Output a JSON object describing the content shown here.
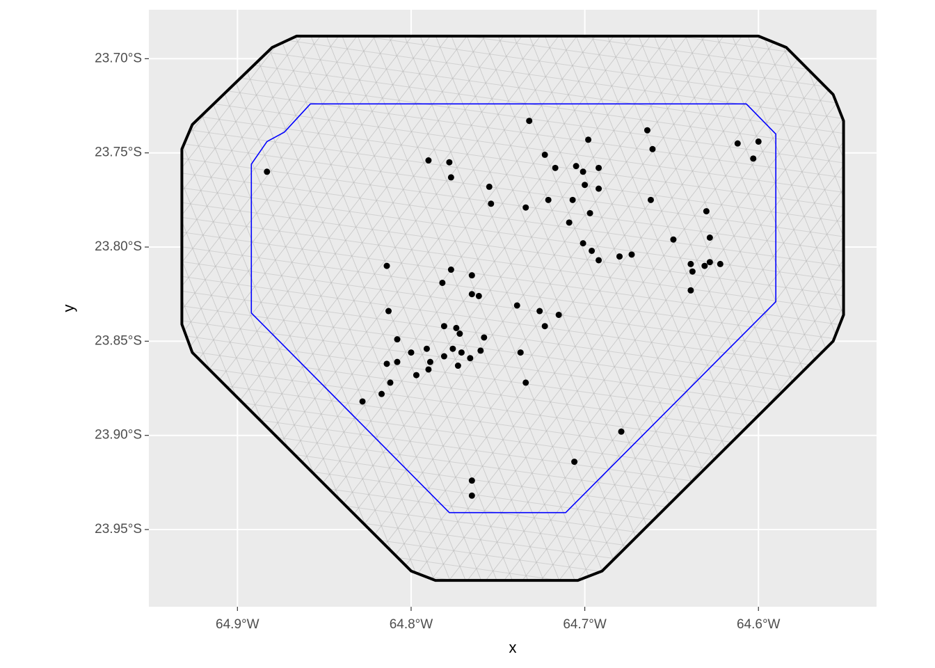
{
  "chart_data": {
    "type": "scatter",
    "x_label": "x",
    "y_label": "y",
    "xlim": [
      -64.951,
      -64.532
    ],
    "ylim": [
      -23.991,
      -23.674
    ],
    "xticks": [
      {
        "value": -64.9,
        "label": "64.9°W"
      },
      {
        "value": -64.8,
        "label": "64.8°W"
      },
      {
        "value": -64.7,
        "label": "64.7°W"
      },
      {
        "value": -64.6,
        "label": "64.6°W"
      }
    ],
    "yticks": [
      {
        "value": -23.7,
        "label": "23.70°S"
      },
      {
        "value": -23.75,
        "label": "23.75°S"
      },
      {
        "value": -23.8,
        "label": "23.80°S"
      },
      {
        "value": -23.85,
        "label": "23.85°S"
      },
      {
        "value": -23.9,
        "label": "23.90°S"
      },
      {
        "value": -23.95,
        "label": "23.95°S"
      }
    ],
    "grid": true,
    "boundaries": [
      {
        "color": "#000000",
        "x": [
          -64.866,
          -64.6,
          -64.584,
          -64.557,
          -64.551,
          -64.551,
          -64.557,
          -64.69,
          -64.704,
          -64.786,
          -64.8,
          -64.926,
          -64.932,
          -64.932,
          -64.926,
          -64.88
        ],
        "y": [
          -23.688,
          -23.688,
          -23.694,
          -23.719,
          -23.733,
          -23.836,
          -23.85,
          -23.972,
          -23.977,
          -23.977,
          -23.972,
          -23.856,
          -23.841,
          -23.748,
          -23.735,
          -23.694
        ]
      },
      {
        "color": "#0000ff",
        "x": [
          -64.858,
          -64.607,
          -64.59,
          -64.59,
          -64.711,
          -64.778,
          -64.892,
          -64.892,
          -64.883,
          -64.873,
          -64.864
        ],
        "y": [
          -23.724,
          -23.724,
          -23.74,
          -23.829,
          -23.941,
          -23.941,
          -23.835,
          -23.756,
          -23.744,
          -23.739,
          -23.73
        ]
      }
    ],
    "points": {
      "color": "#000000",
      "x": [
        -64.883,
        -64.79,
        -64.778,
        -64.777,
        -64.732,
        -64.723,
        -64.717,
        -64.705,
        -64.701,
        -64.692,
        -64.698,
        -64.7,
        -64.692,
        -64.755,
        -64.754,
        -64.734,
        -64.721,
        -64.707,
        -64.697,
        -64.709,
        -64.701,
        -64.696,
        -64.692,
        -64.68,
        -64.673,
        -64.664,
        -64.661,
        -64.662,
        -64.649,
        -64.63,
        -64.628,
        -64.639,
        -64.638,
        -64.631,
        -64.628,
        -64.622,
        -64.639,
        -64.612,
        -64.6,
        -64.603,
        -64.814,
        -64.777,
        -64.782,
        -64.765,
        -64.765,
        -64.761,
        -64.813,
        -64.739,
        -64.726,
        -64.723,
        -64.715,
        -64.808,
        -64.781,
        -64.774,
        -64.772,
        -64.758,
        -64.776,
        -64.771,
        -64.766,
        -64.76,
        -64.781,
        -64.791,
        -64.789,
        -64.79,
        -64.8,
        -64.797,
        -64.808,
        -64.814,
        -64.812,
        -64.817,
        -64.828,
        -64.737,
        -64.734,
        -64.773,
        -64.679,
        -64.706,
        -64.765,
        -64.765
      ],
      "y": [
        -23.76,
        -23.754,
        -23.755,
        -23.763,
        -23.733,
        -23.751,
        -23.758,
        -23.757,
        -23.76,
        -23.758,
        -23.743,
        -23.767,
        -23.769,
        -23.768,
        -23.777,
        -23.779,
        -23.775,
        -23.775,
        -23.782,
        -23.787,
        -23.798,
        -23.802,
        -23.807,
        -23.805,
        -23.804,
        -23.738,
        -23.748,
        -23.775,
        -23.796,
        -23.781,
        -23.795,
        -23.809,
        -23.813,
        -23.81,
        -23.808,
        -23.809,
        -23.823,
        -23.745,
        -23.744,
        -23.753,
        -23.81,
        -23.812,
        -23.819,
        -23.815,
        -23.825,
        -23.826,
        -23.834,
        -23.831,
        -23.834,
        -23.842,
        -23.836,
        -23.849,
        -23.842,
        -23.843,
        -23.846,
        -23.848,
        -23.854,
        -23.856,
        -23.859,
        -23.855,
        -23.858,
        -23.854,
        -23.861,
        -23.865,
        -23.856,
        -23.868,
        -23.861,
        -23.862,
        -23.872,
        -23.878,
        -23.882,
        -23.856,
        -23.872,
        -23.863,
        -23.898,
        -23.914,
        -23.924,
        -23.932
      ]
    }
  }
}
